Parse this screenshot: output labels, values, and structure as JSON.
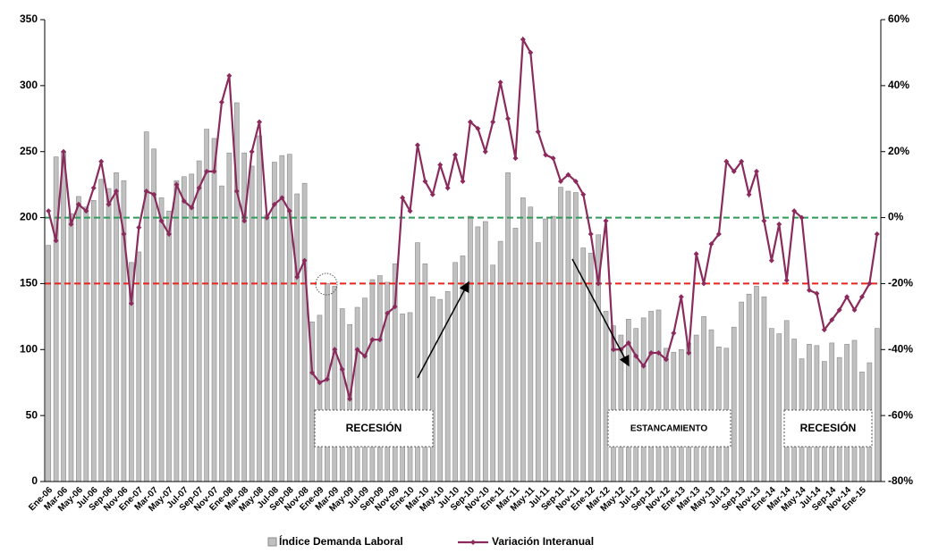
{
  "chart_data": {
    "type": "bar-line",
    "categories": [
      "Ene-06",
      null,
      "Mar-06",
      null,
      "May-06",
      null,
      "Jul-06",
      null,
      "Sep-06",
      null,
      "Nov-06",
      null,
      "Ene-07",
      null,
      "Mar-07",
      null,
      "May-07",
      null,
      "Jul-07",
      null,
      "Sep-07",
      null,
      "Nov-07",
      null,
      "Ene-08",
      null,
      "Mar-08",
      null,
      "May-08",
      null,
      "Jul-08",
      null,
      "Sep-08",
      null,
      "Nov-08",
      null,
      "Ene-09",
      null,
      "Mar-09",
      null,
      "May-09",
      null,
      "Jul-09",
      null,
      "Sep-09",
      null,
      "Nov-09",
      null,
      "Ene-10",
      null,
      "Mar-10",
      null,
      "May-10",
      null,
      "Jul-10",
      null,
      "Sep-10",
      null,
      "Nov-10",
      null,
      "Ene-11",
      null,
      "Mar-11",
      null,
      "May-11",
      null,
      "Jul-11",
      null,
      "Sep-11",
      null,
      "Nov-11",
      null,
      "Ene-12",
      null,
      "Mar-12",
      null,
      "May-12",
      null,
      "Jul-12",
      null,
      "Sep-12",
      null,
      "Nov-12",
      null,
      "Ene-13",
      null,
      "Mar-13",
      null,
      "May-13",
      null,
      "Jul-13",
      null,
      "Sep-13",
      null,
      "Nov-13",
      null,
      "Ene-14",
      null,
      "Mar-14",
      null,
      "May-14",
      null,
      "Jul-14",
      null,
      "Sep-14",
      null,
      "Nov-14",
      null,
      "Ene-15",
      null,
      null
    ],
    "series": [
      {
        "name": "Índice Demanda Laboral",
        "type": "bar",
        "color": "#c0c0c0",
        "values": [
          179,
          246,
          250,
          203,
          216,
          208,
          213,
          229,
          222,
          234,
          228,
          166,
          174,
          265,
          252,
          215,
          205,
          228,
          231,
          233,
          243,
          267,
          260,
          224,
          249,
          287,
          249,
          239,
          262,
          202,
          242,
          247,
          248,
          218,
          226,
          121,
          126,
          150,
          148,
          131,
          119,
          132,
          139,
          153,
          156,
          151,
          165,
          127,
          128,
          181,
          165,
          140,
          138,
          144,
          166,
          171,
          201,
          193,
          197,
          164,
          182,
          234,
          192,
          215,
          208,
          181,
          199,
          201,
          223,
          220,
          219,
          177,
          173,
          187,
          129,
          118,
          111,
          123,
          116,
          124,
          129,
          130,
          101,
          98,
          100,
          105,
          111,
          125,
          115,
          102,
          101,
          117,
          136,
          142,
          148,
          140,
          116,
          112,
          122,
          108,
          93,
          104,
          103,
          91,
          105,
          94,
          104,
          107,
          83,
          90,
          116
        ]
      },
      {
        "name": "Variación Interanual",
        "type": "line",
        "axis": "y2",
        "color": "#8b2a5c",
        "values": [
          2,
          -7,
          20,
          -2,
          4,
          2,
          9,
          17,
          4,
          8,
          -5,
          -26,
          -3,
          8,
          7,
          -1,
          -5,
          10,
          5,
          3,
          9,
          14,
          14,
          35,
          43,
          8,
          -1,
          20,
          29,
          0,
          4,
          6,
          2,
          -18,
          -13,
          -47,
          -50,
          -49,
          -40,
          -46,
          -55,
          -40,
          -42,
          -37,
          -37,
          -29,
          -27,
          6,
          2,
          22,
          11,
          7,
          16,
          9,
          19,
          11,
          29,
          27,
          20,
          29,
          41,
          30,
          18,
          54,
          50,
          26,
          19,
          18,
          11,
          13,
          11,
          7,
          -5,
          -20,
          -1,
          -40,
          -40,
          -38,
          -42,
          -45,
          -41,
          -41,
          -43,
          -35,
          -24,
          -41,
          -11,
          -20,
          -8,
          -5,
          17,
          14,
          17,
          7,
          14,
          -1,
          -13,
          -2,
          -19,
          2,
          0,
          -22,
          -23,
          -34,
          -31,
          -28,
          -24,
          -28,
          -24,
          -20,
          -5
        ]
      }
    ],
    "ylim": [
      0,
      350
    ],
    "yticks": [
      0,
      50,
      100,
      150,
      200,
      250,
      300,
      350
    ],
    "y2lim": [
      -80,
      60
    ],
    "y2ticks": [
      {
        "value": -80,
        "label": "-80%"
      },
      {
        "value": -60,
        "label": "-60%"
      },
      {
        "value": -40,
        "label": "-40%"
      },
      {
        "value": -20,
        "label": "-20%"
      },
      {
        "value": 0,
        "label": "0%"
      },
      {
        "value": 20,
        "label": "20%"
      },
      {
        "value": 40,
        "label": "40%"
      },
      {
        "value": 60,
        "label": "60%"
      }
    ],
    "reference_lines": [
      {
        "value": 0,
        "axis": "y2",
        "color": "#2e9a5a"
      },
      {
        "value": -20,
        "axis": "y2",
        "color": "#e8241c"
      }
    ],
    "annotations": [
      "RECESIÓN",
      "ESTANCAMIENTO",
      "RECESIÓN"
    ],
    "legend": "bottom"
  }
}
